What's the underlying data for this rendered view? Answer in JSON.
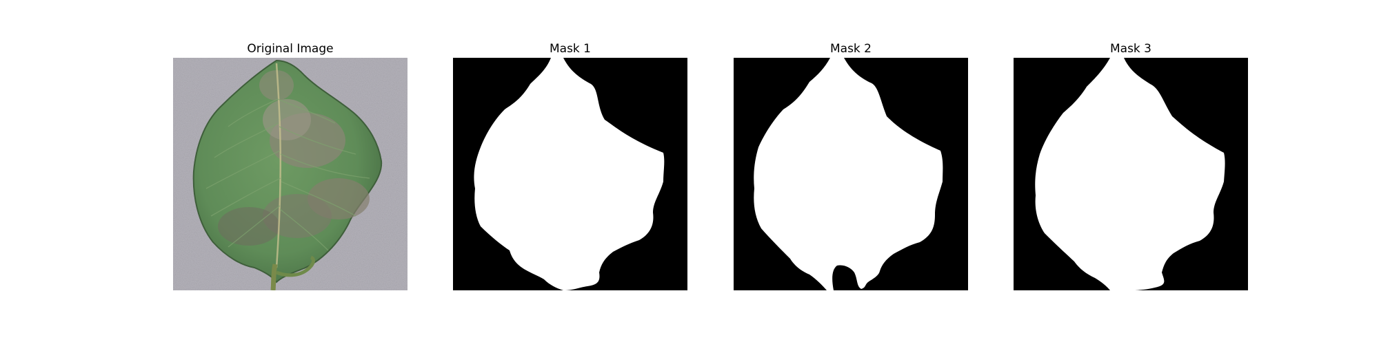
{
  "figure": {
    "panels": [
      {
        "title": "Original Image",
        "content": "leaf-photo"
      },
      {
        "title": "Mask 1",
        "content": "binary-mask"
      },
      {
        "title": "Mask 2",
        "content": "binary-mask"
      },
      {
        "title": "Mask 3",
        "content": "binary-mask"
      }
    ],
    "colors": {
      "mask_background": "#000000",
      "mask_foreground": "#ffffff",
      "photo_background": "#b4b2ba",
      "leaf_green": "#5f8c58",
      "leaf_dark": "#3f5f3c",
      "blight": "#8a8676"
    }
  }
}
